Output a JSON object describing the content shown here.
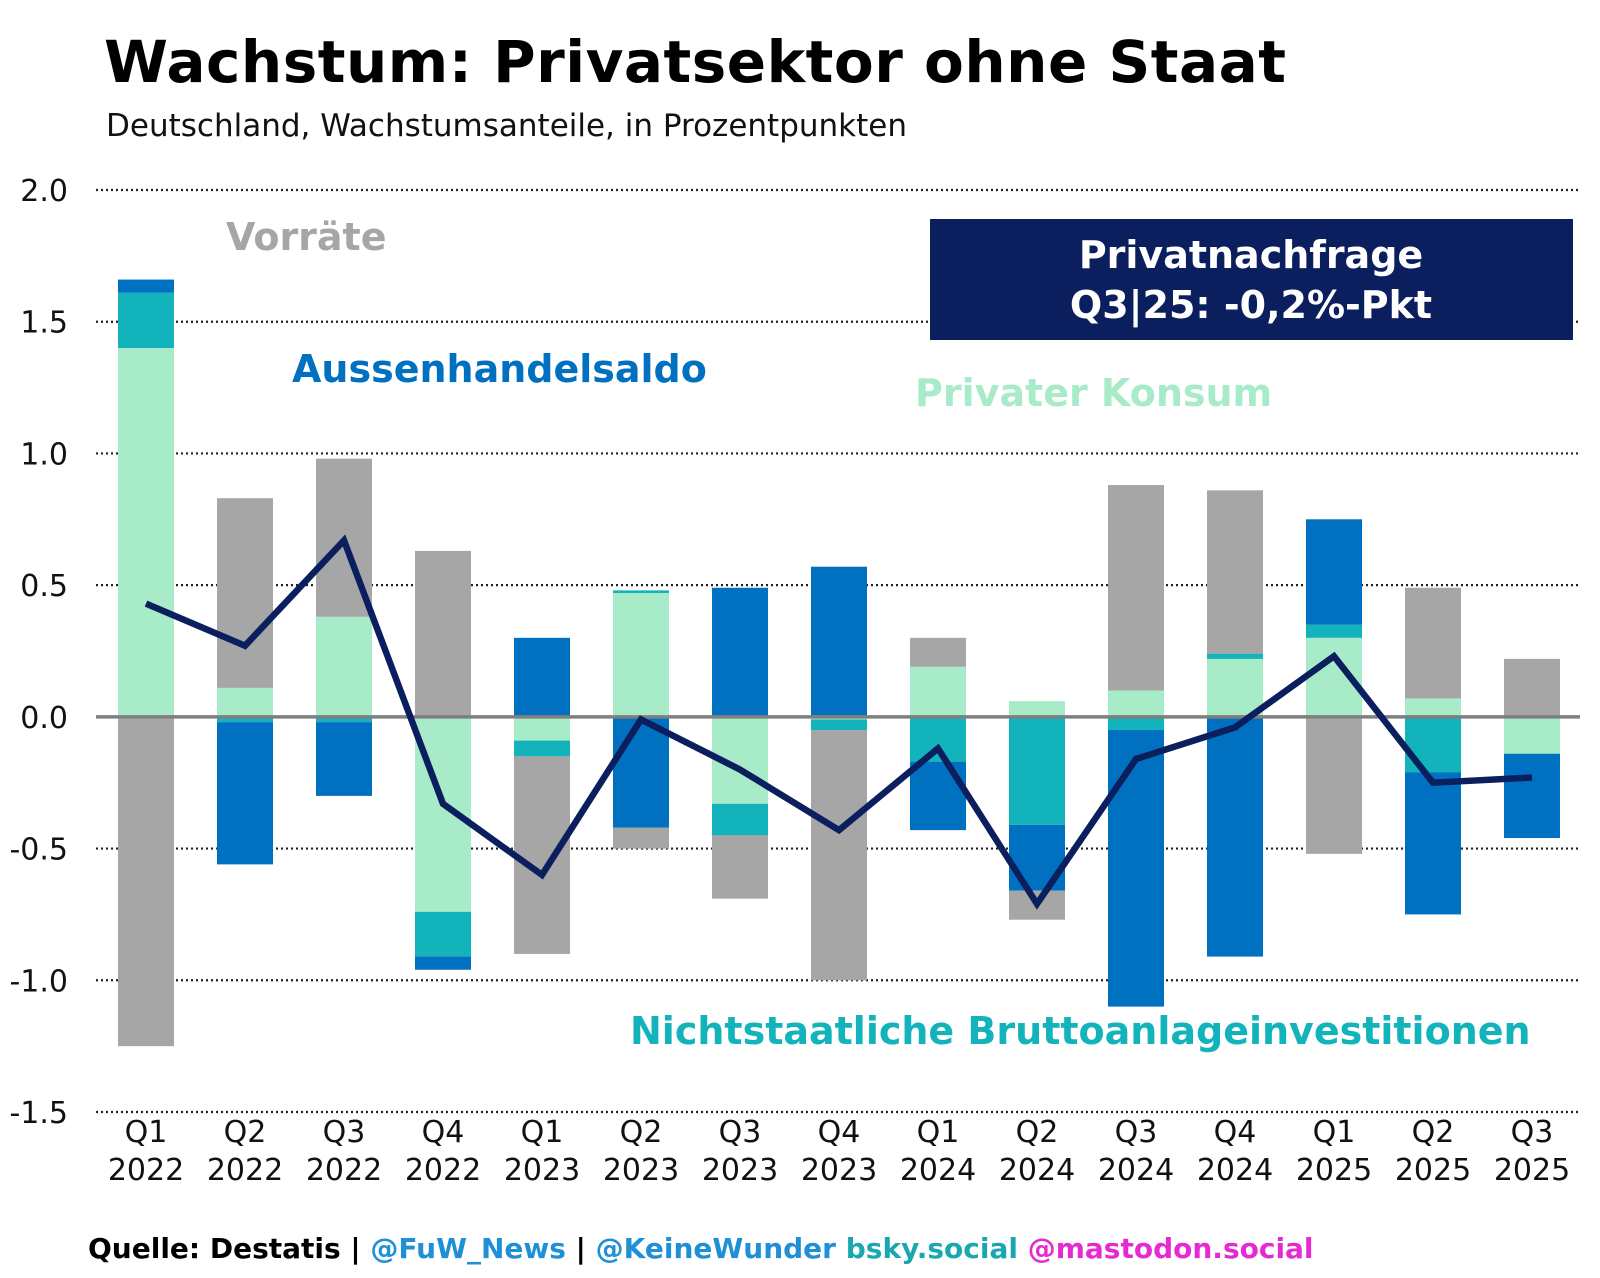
{
  "title": "Wachstum: Privatsektor ohne Staat",
  "subtitle": "Deutschland, Wachstumsanteile, in Prozentpunkten",
  "callout": {
    "line1": "Privatnachfrage",
    "line2": "Q3|25: -0,2%-Pkt",
    "background": "#0b1f5e"
  },
  "series_labels": {
    "vorraete": "Vorräte",
    "aussenhandel": "Aussenhandelsaldo",
    "konsum": "Privater Konsum",
    "investitionen": "Nichtstaatliche Bruttoanlageinvestitionen"
  },
  "footer": {
    "source": "Quelle: Destatis",
    "sep1": " | ",
    "handle1": "@FuW_News",
    "sep2": " | ",
    "handle2": "@KeineWunder",
    "bsky": " bsky.social",
    "mastodon": " @mastodon.social"
  },
  "colors": {
    "konsum": "#a8ebc9",
    "investitionen": "#13b3bb",
    "aussenhandel": "#0070c0",
    "vorraete": "#a6a6a6",
    "line": "#0b1f5e",
    "footer_blue": "#1f8fd6",
    "footer_teal": "#1aa7b0",
    "footer_pink": "#e62ad1"
  },
  "chart_data": {
    "type": "bar",
    "stacked": true,
    "categories": [
      [
        "Q1",
        "2022"
      ],
      [
        "Q2",
        "2022"
      ],
      [
        "Q3",
        "2022"
      ],
      [
        "Q4",
        "2022"
      ],
      [
        "Q1",
        "2023"
      ],
      [
        "Q2",
        "2023"
      ],
      [
        "Q3",
        "2023"
      ],
      [
        "Q4",
        "2023"
      ],
      [
        "Q1",
        "2024"
      ],
      [
        "Q2",
        "2024"
      ],
      [
        "Q3",
        "2024"
      ],
      [
        "Q4",
        "2024"
      ],
      [
        "Q1",
        "2025"
      ],
      [
        "Q2",
        "2025"
      ],
      [
        "Q3",
        "2025"
      ]
    ],
    "series": [
      {
        "key": "konsum",
        "name": "Privater Konsum",
        "values": [
          1.4,
          0.11,
          0.38,
          -0.74,
          -0.09,
          0.47,
          -0.33,
          -0.01,
          0.19,
          0.06,
          0.1,
          0.22,
          0.3,
          0.07,
          -0.14
        ]
      },
      {
        "key": "investitionen",
        "name": "Nichtstaatliche Bruttoanlageinvestitionen",
        "values": [
          0.21,
          -0.02,
          -0.02,
          -0.17,
          -0.06,
          0.01,
          -0.12,
          -0.04,
          -0.17,
          -0.41,
          -0.05,
          0.02,
          0.05,
          -0.21,
          0.0
        ]
      },
      {
        "key": "aussenhandel",
        "name": "Aussenhandelsaldo",
        "values": [
          0.05,
          -0.54,
          -0.28,
          -0.05,
          0.3,
          -0.42,
          0.49,
          0.57,
          -0.26,
          -0.25,
          -1.05,
          -0.91,
          0.4,
          -0.54,
          -0.32
        ]
      },
      {
        "key": "vorraete",
        "name": "Vorräte",
        "values": [
          -1.25,
          0.72,
          0.6,
          0.63,
          -0.75,
          -0.08,
          -0.24,
          -0.95,
          0.11,
          -0.11,
          0.78,
          0.62,
          -0.52,
          0.42,
          0.22
        ]
      }
    ],
    "line": {
      "name": "Privatnachfrage",
      "values": [
        0.43,
        0.27,
        0.67,
        -0.33,
        -0.6,
        -0.01,
        -0.2,
        -0.43,
        -0.12,
        -0.71,
        -0.16,
        -0.04,
        0.23,
        -0.25,
        -0.23
      ]
    },
    "ylim": [
      -1.5,
      2.0
    ],
    "yticks": [
      "2.0",
      "1.5",
      "1.0",
      "0.5",
      "0.0",
      "-0.5",
      "-1.0",
      "-1.5"
    ],
    "ytick_values": [
      2.0,
      1.5,
      1.0,
      0.5,
      0.0,
      -0.5,
      -1.0,
      -1.5
    ],
    "grid": true,
    "xlabel": "",
    "ylabel": ""
  }
}
